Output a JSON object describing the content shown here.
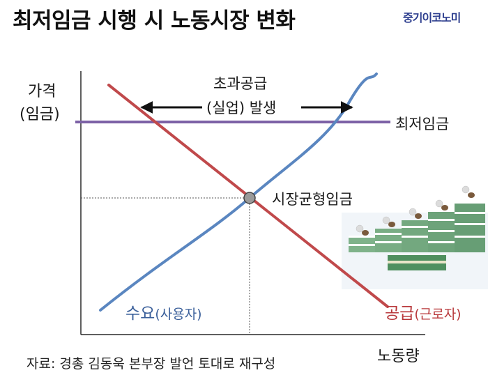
{
  "header": {
    "title": "최저임금 시행 시 노동시장 변화",
    "brand": "중기이코노미"
  },
  "chart_data": {
    "type": "line",
    "ylabel_line1": "가격",
    "ylabel_line2": "(임금)",
    "xlabel": "노동량",
    "minimum_wage_label": "최저임금",
    "surplus_label_line1": "초과공급",
    "surplus_label_line2": "(실업) 발생",
    "equilibrium_label": "시장균형임금",
    "demand_label": "수요",
    "demand_sub": "(사용자)",
    "supply_label": "공급",
    "supply_sub": "(근로자)",
    "colors": {
      "demand": "#5a86c0",
      "supply": "#c0494b",
      "minimum_wage": "#7d62a6",
      "equilibrium_point": "#9a9a9a"
    }
  },
  "footer": {
    "source": "자료: 경총 김동욱 본부장 발언 토대로 재구성"
  }
}
